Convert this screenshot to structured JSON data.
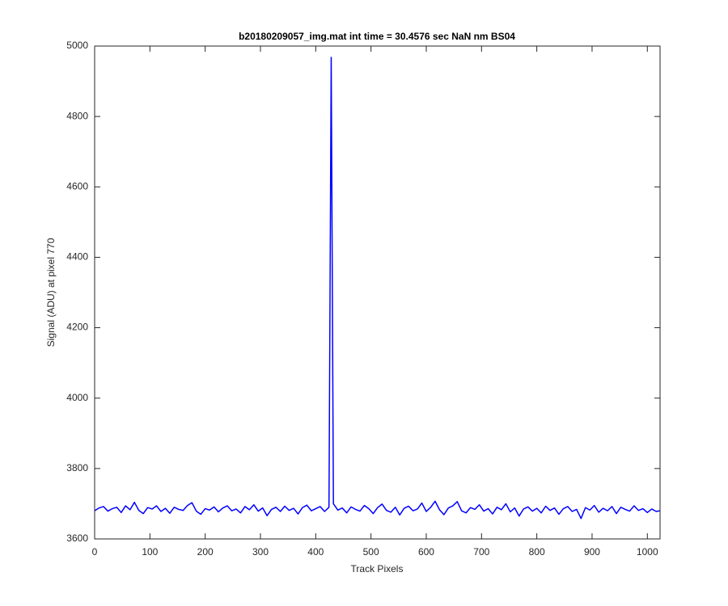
{
  "chart_data": {
    "type": "line",
    "title": "b20180209057_img.mat int time = 30.4576 sec  NaN nm BS04",
    "x_label": "Track Pixels",
    "y_label": "Signal (ADU) at pixel 770",
    "xlim": [
      0,
      1023
    ],
    "ylim": [
      3600,
      5000
    ],
    "xticks": [
      0,
      100,
      200,
      300,
      400,
      500,
      600,
      700,
      800,
      900,
      1000
    ],
    "yticks": [
      3600,
      3800,
      4000,
      4200,
      4400,
      4600,
      4800,
      5000
    ],
    "x": [
      0,
      8,
      16,
      24,
      32,
      40,
      48,
      56,
      64,
      72,
      80,
      88,
      96,
      104,
      112,
      120,
      128,
      136,
      144,
      152,
      160,
      168,
      176,
      184,
      192,
      200,
      208,
      216,
      224,
      232,
      240,
      248,
      256,
      264,
      272,
      280,
      288,
      296,
      304,
      312,
      320,
      328,
      336,
      344,
      352,
      360,
      368,
      376,
      384,
      392,
      400,
      408,
      416,
      424,
      428,
      432,
      440,
      448,
      456,
      464,
      472,
      480,
      488,
      496,
      504,
      512,
      520,
      528,
      536,
      544,
      552,
      560,
      568,
      576,
      584,
      592,
      600,
      608,
      616,
      624,
      632,
      640,
      648,
      656,
      664,
      672,
      680,
      688,
      696,
      704,
      712,
      720,
      728,
      736,
      744,
      752,
      760,
      768,
      776,
      784,
      792,
      800,
      808,
      816,
      824,
      832,
      840,
      848,
      856,
      864,
      872,
      880,
      888,
      896,
      904,
      912,
      920,
      928,
      936,
      944,
      952,
      960,
      968,
      976,
      984,
      992,
      1000,
      1008,
      1016,
      1023
    ],
    "series": [
      {
        "color": "#0000ff",
        "values": [
          3680,
          3688,
          3692,
          3679,
          3686,
          3690,
          3675,
          3694,
          3683,
          3704,
          3681,
          3672,
          3689,
          3685,
          3694,
          3678,
          3687,
          3673,
          3690,
          3684,
          3681,
          3695,
          3703,
          3679,
          3670,
          3686,
          3682,
          3691,
          3677,
          3688,
          3694,
          3680,
          3685,
          3674,
          3692,
          3683,
          3697,
          3679,
          3688,
          3666,
          3684,
          3690,
          3678,
          3693,
          3681,
          3687,
          3671,
          3689,
          3696,
          3680,
          3686,
          3692,
          3678,
          3690,
          4968,
          3700,
          3682,
          3688,
          3674,
          3691,
          3684,
          3679,
          3695,
          3686,
          3672,
          3689,
          3699,
          3681,
          3676,
          3690,
          3668,
          3687,
          3693,
          3680,
          3685,
          3702,
          3678,
          3690,
          3707,
          3683,
          3669,
          3688,
          3694,
          3706,
          3680,
          3674,
          3689,
          3684,
          3697,
          3679,
          3686,
          3671,
          3690,
          3683,
          3700,
          3677,
          3688,
          3665,
          3685,
          3691,
          3679,
          3687,
          3674,
          3693,
          3681,
          3688,
          3670,
          3686,
          3692,
          3678,
          3684,
          3658,
          3689,
          3682,
          3695,
          3676,
          3687,
          3680,
          3692,
          3672,
          3690,
          3684,
          3679,
          3694,
          3681,
          3686,
          3675,
          3685,
          3678,
          3680
        ]
      }
    ],
    "grid": false,
    "box": true
  }
}
